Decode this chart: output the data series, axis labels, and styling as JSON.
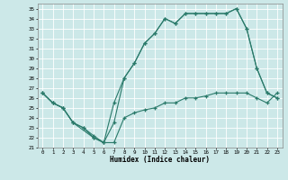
{
  "xlabel": "Humidex (Indice chaleur)",
  "background_color": "#cce8e8",
  "line_color": "#2a7a6a",
  "grid_color": "#b0d8d8",
  "xlim": [
    -0.5,
    23.5
  ],
  "ylim": [
    21,
    35.5
  ],
  "yticks": [
    21,
    22,
    23,
    24,
    25,
    26,
    27,
    28,
    29,
    30,
    31,
    32,
    33,
    34,
    35
  ],
  "xticks": [
    0,
    1,
    2,
    3,
    4,
    5,
    6,
    7,
    8,
    9,
    10,
    11,
    12,
    13,
    14,
    15,
    16,
    17,
    18,
    19,
    20,
    21,
    22,
    23
  ],
  "curve1_x": [
    0,
    1,
    2,
    3,
    4,
    5,
    6,
    7,
    8,
    9,
    10,
    11,
    12,
    13,
    14,
    15,
    16,
    17,
    18,
    19,
    20,
    21,
    22,
    23
  ],
  "curve1_y": [
    26.5,
    25.5,
    25.0,
    23.5,
    23.0,
    22.0,
    21.5,
    25.5,
    28.0,
    29.5,
    31.5,
    32.5,
    34.0,
    33.5,
    34.5,
    34.5,
    34.5,
    34.5,
    34.5,
    35.0,
    33.0,
    29.0,
    26.5,
    26.0
  ],
  "curve2_x": [
    0,
    1,
    2,
    3,
    5,
    6,
    7,
    8,
    9,
    10,
    11,
    12,
    13,
    14,
    15,
    16,
    17,
    18,
    19,
    20,
    21,
    22,
    23
  ],
  "curve2_y": [
    26.5,
    25.5,
    25.0,
    23.5,
    22.0,
    21.5,
    23.5,
    28.0,
    29.5,
    31.5,
    32.5,
    34.0,
    33.5,
    34.5,
    34.5,
    34.5,
    34.5,
    34.5,
    35.0,
    33.0,
    29.0,
    26.5,
    26.0
  ],
  "curve3_x": [
    0,
    1,
    2,
    3,
    4,
    5,
    6,
    7,
    8,
    9,
    10,
    11,
    12,
    13,
    14,
    15,
    16,
    17,
    18,
    19,
    20,
    21,
    22,
    23
  ],
  "curve3_y": [
    26.5,
    25.5,
    25.0,
    23.5,
    23.0,
    22.2,
    21.5,
    21.5,
    24.0,
    24.5,
    24.8,
    25.0,
    25.5,
    25.5,
    26.0,
    26.0,
    26.2,
    26.5,
    26.5,
    26.5,
    26.5,
    26.0,
    25.5,
    26.5
  ]
}
